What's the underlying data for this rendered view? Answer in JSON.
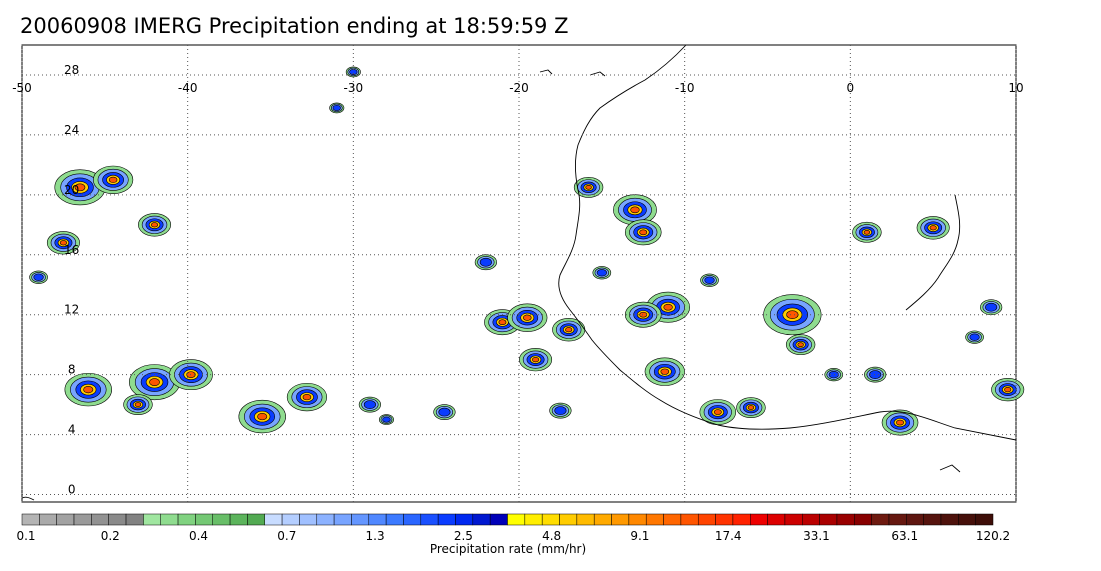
{
  "title": "20060908 IMERG Precipitation ending at 18:59:59 Z",
  "map": {
    "lon_range": [
      -50,
      10
    ],
    "lat_range": [
      -0.5,
      30
    ],
    "lon_ticks": [
      -50,
      -40,
      -30,
      -20,
      -10,
      0,
      10
    ],
    "lon_tick_labels": [
      "-50",
      "-40",
      "-30",
      "-20",
      "-10",
      "0",
      "10"
    ],
    "lat_ticks": [
      0,
      4,
      8,
      12,
      16,
      20,
      24,
      28
    ],
    "lat_tick_labels": [
      "0",
      "4",
      "8",
      "12",
      "16",
      "20",
      "24",
      "28"
    ],
    "grid": "dotted",
    "label_color": "#000000"
  },
  "colorbar": {
    "label": "Precipitation rate (mm/hr)",
    "tick_labels": [
      "0.1",
      "0.2",
      "0.4",
      "0.7",
      "1.3",
      "2.5",
      "4.8",
      "9.1",
      "17.4",
      "33.1",
      "63.1",
      "120.2"
    ],
    "colors": [
      "#b4b4b4",
      "#aaaaaa",
      "#a2a2a2",
      "#9a9a9a",
      "#929292",
      "#8a8a8a",
      "#828282",
      "#a0e6a0",
      "#8fdc8f",
      "#80d280",
      "#74c874",
      "#68be68",
      "#5cb45c",
      "#52aa52",
      "#c8dcff",
      "#b4ceff",
      "#a0c0ff",
      "#8cb2ff",
      "#78a4ff",
      "#6496ff",
      "#5088ff",
      "#3c7aff",
      "#2a66ff",
      "#1a50ff",
      "#0a3cff",
      "#0028f0",
      "#0018d0",
      "#0000b8",
      "#ffff00",
      "#ffee00",
      "#ffdd00",
      "#ffcc00",
      "#ffbb00",
      "#ffaa00",
      "#ff9900",
      "#ff8800",
      "#ff7700",
      "#ff6600",
      "#ff5500",
      "#ff4400",
      "#ff3300",
      "#ff2200",
      "#ee0000",
      "#dd0000",
      "#cc0000",
      "#bb0000",
      "#aa0000",
      "#990000",
      "#880000",
      "#6e1a10",
      "#661810",
      "#5e1610",
      "#56140e",
      "#4e120c",
      "#46100a",
      "#3e0e08"
    ]
  }
}
